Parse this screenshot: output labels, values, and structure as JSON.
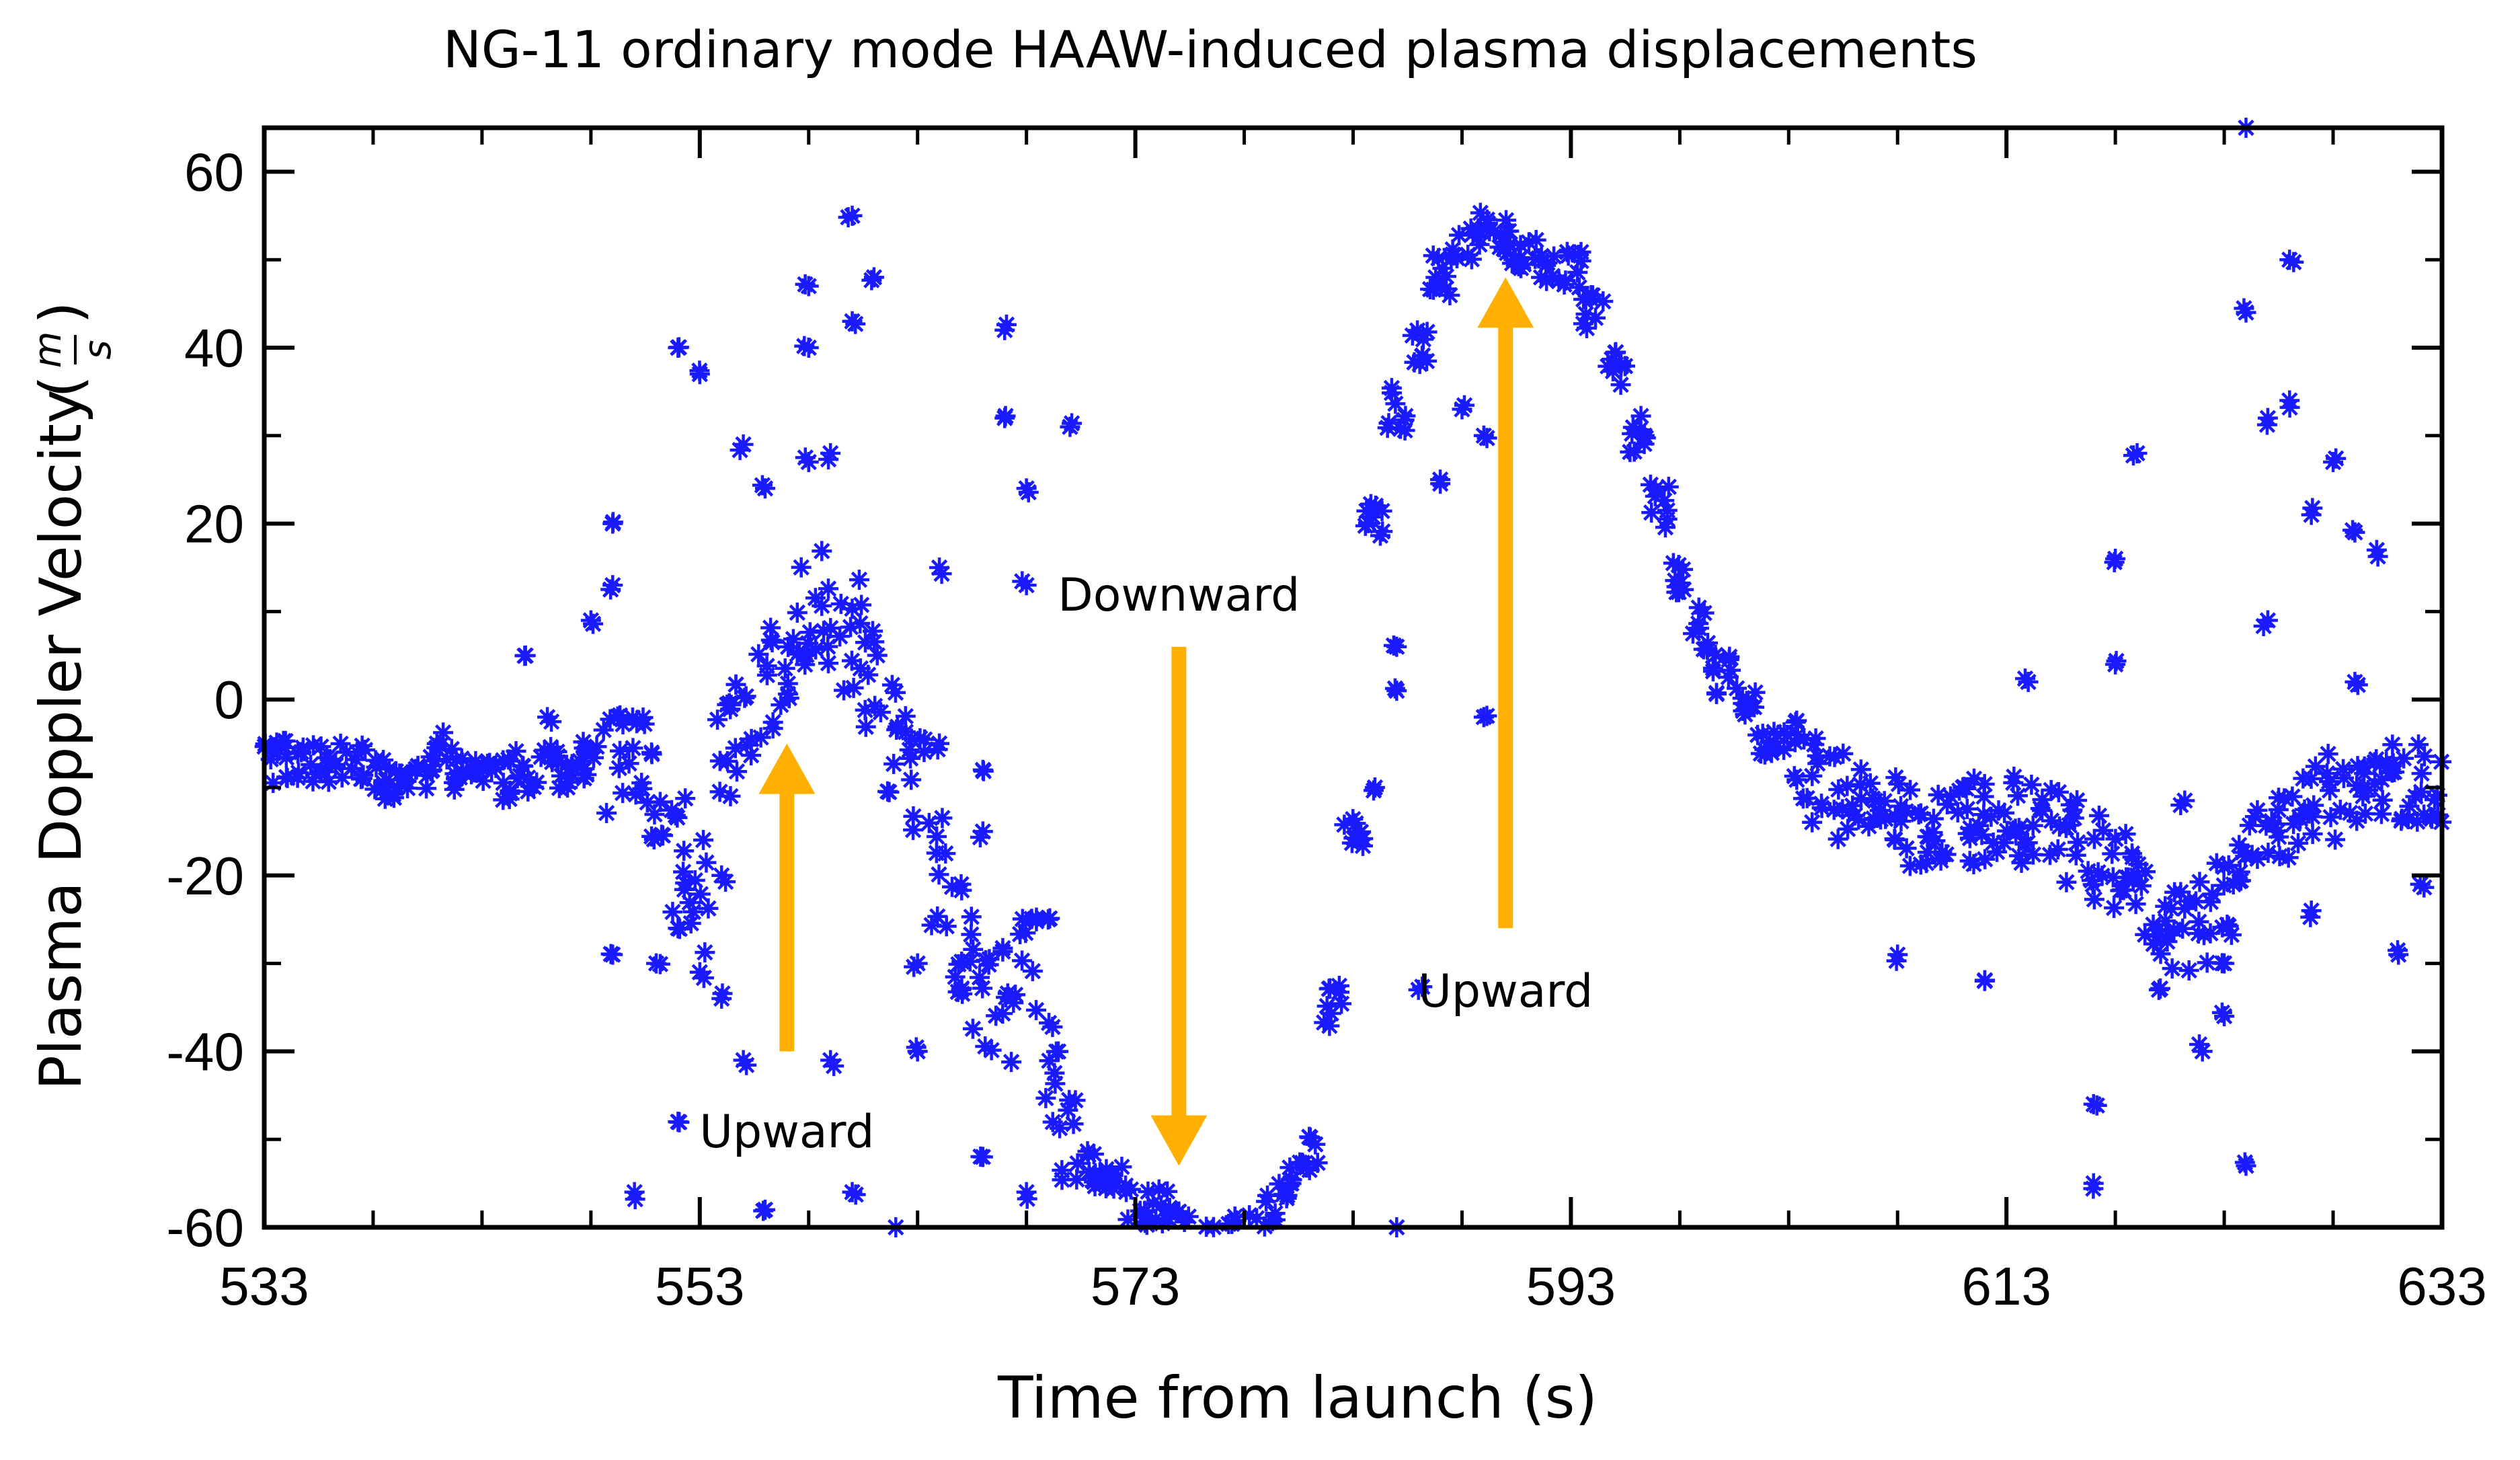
{
  "chart_data": {
    "type": "scatter",
    "title": "NG-11 ordinary mode HAAW-induced plasma displacements",
    "xlabel": "Time from launch (s)",
    "ylabel": "Plasma Doppler Velocity",
    "ylabel_unit": {
      "numerator": "m",
      "denominator": "s"
    },
    "xlim": [
      533,
      633
    ],
    "ylim": [
      -60,
      65
    ],
    "xticks": [
      533,
      553,
      573,
      593,
      613,
      633
    ],
    "xtick_labels": [
      "533",
      "553",
      "573",
      "593",
      "613",
      "633"
    ],
    "yticks": [
      -60,
      -40,
      -20,
      0,
      20,
      40,
      60
    ],
    "ytick_labels": [
      "-60",
      "-40",
      "-20",
      "0",
      "20",
      "40",
      "60"
    ],
    "marker": "asterisk",
    "marker_color": "#1a1aff",
    "series": [
      {
        "name": "Plasma Doppler velocity",
        "x": [
          533,
          534,
          535,
          536,
          537,
          538,
          539,
          540,
          541,
          542,
          543,
          544,
          545,
          546,
          547,
          548,
          549,
          550,
          551,
          552,
          553,
          554,
          555,
          556,
          557,
          558,
          559,
          560,
          561,
          562,
          563,
          564,
          565,
          566,
          567,
          568,
          569,
          570,
          571,
          572,
          573,
          574,
          575,
          576,
          577,
          578,
          579,
          580,
          581,
          582,
          583,
          584,
          585,
          586,
          587,
          588,
          589,
          590,
          591,
          592,
          593,
          594,
          595,
          596,
          597,
          598,
          599,
          600,
          601,
          602,
          603,
          604,
          605,
          606,
          607,
          608,
          609,
          610,
          611,
          612,
          613,
          614,
          615,
          616,
          617,
          618,
          619,
          620,
          621,
          622,
          623,
          624,
          625,
          626,
          627,
          628,
          629,
          630,
          631,
          632,
          633
        ],
        "y": [
          -7,
          -7,
          -7,
          -7,
          -7,
          -8,
          -9,
          -8,
          -6,
          -8,
          -9,
          -9,
          -8,
          -7,
          -8,
          -7,
          -6,
          -9,
          -13,
          -18,
          -22,
          -5,
          -2,
          2,
          6,
          9,
          10,
          7,
          2,
          -5,
          -10,
          -20,
          -27,
          -33,
          -35,
          -30,
          -42,
          -52,
          -53,
          -55,
          -57,
          -58,
          -60,
          -61,
          -62,
          -61,
          -58,
          -55,
          -52,
          -35,
          -15,
          20,
          33,
          40,
          48,
          52,
          53,
          52,
          51,
          50,
          49,
          44,
          38,
          30,
          22,
          14,
          8,
          3,
          -1,
          -4,
          -7,
          -9,
          -11,
          -12,
          -13,
          -13,
          -14,
          -14,
          -14,
          -14,
          -13,
          -14,
          -15,
          -16,
          -18,
          -20,
          -22,
          -24,
          -26,
          -25,
          -23,
          -18,
          -15,
          -13,
          -12,
          -11,
          -10,
          -10,
          -10,
          -9,
          -9
        ],
        "scatter_outliers": [
          [
            554,
            -20
          ],
          [
            549,
            20
          ],
          [
            549,
            13
          ],
          [
            549,
            -29
          ],
          [
            552,
            40
          ],
          [
            553,
            37
          ],
          [
            555,
            29
          ],
          [
            556,
            24
          ],
          [
            558,
            27
          ],
          [
            558,
            40
          ],
          [
            558,
            47
          ],
          [
            559,
            28
          ],
          [
            560,
            55
          ],
          [
            560,
            43
          ],
          [
            561,
            48
          ],
          [
            564,
            15
          ],
          [
            564,
            -5
          ],
          [
            566,
            -8
          ],
          [
            566,
            -15
          ],
          [
            567,
            42
          ],
          [
            567,
            32
          ],
          [
            568,
            24
          ],
          [
            568,
            13
          ],
          [
            570,
            31
          ],
          [
            553,
            -31
          ],
          [
            554,
            -34
          ],
          [
            555,
            -41
          ],
          [
            552,
            -48
          ],
          [
            550,
            -56
          ],
          [
            556,
            -58
          ],
          [
            559,
            -41
          ],
          [
            560,
            -56
          ],
          [
            562,
            -60
          ],
          [
            563,
            -30
          ],
          [
            563,
            -40
          ],
          [
            565,
            -21
          ],
          [
            565,
            -33
          ],
          [
            566,
            -52
          ],
          [
            568,
            -56
          ],
          [
            569,
            -25
          ],
          [
            545,
            5
          ],
          [
            546,
            -2
          ],
          [
            548,
            9
          ],
          [
            551,
            -30
          ],
          [
            552,
            -26
          ],
          [
            584,
            -10
          ],
          [
            585,
            6
          ],
          [
            585,
            1
          ],
          [
            585,
            -60
          ],
          [
            586,
            -33
          ],
          [
            587,
            47
          ],
          [
            587,
            25
          ],
          [
            589,
            -2
          ],
          [
            588,
            33
          ],
          [
            589,
            30
          ],
          [
            590,
            52
          ],
          [
            614,
            2
          ],
          [
            617,
            -46
          ],
          [
            617,
            -55
          ],
          [
            618,
            4
          ],
          [
            618,
            16
          ],
          [
            619,
            28
          ],
          [
            621,
            -12
          ],
          [
            622,
            -40
          ],
          [
            623,
            -36
          ],
          [
            623,
            -30
          ],
          [
            624,
            -53
          ],
          [
            624,
            65
          ],
          [
            624,
            44
          ],
          [
            625,
            9
          ],
          [
            625,
            32
          ],
          [
            626,
            50
          ],
          [
            626,
            34
          ],
          [
            627,
            -24
          ],
          [
            627,
            21
          ],
          [
            628,
            27
          ],
          [
            629,
            19
          ],
          [
            629,
            2
          ],
          [
            630,
            17
          ],
          [
            631,
            -29
          ],
          [
            632,
            -21
          ],
          [
            612,
            -32
          ],
          [
            611,
            -10
          ],
          [
            608,
            -29
          ],
          [
            619,
            -20
          ],
          [
            620,
            -33
          ]
        ]
      }
    ],
    "arrows": [
      {
        "label": "Upward",
        "direction": "up",
        "x": 557,
        "y_from": -40,
        "y_to": -5,
        "label_x": 557,
        "label_y": -49
      },
      {
        "label": "Downward",
        "direction": "down",
        "x": 575,
        "y_from": 6,
        "y_to": -53,
        "label_x": 575,
        "label_y": 12
      },
      {
        "label": "Upward",
        "direction": "up",
        "x": 590,
        "y_from": -26,
        "y_to": 48,
        "label_x": 590,
        "label_y": -33
      }
    ],
    "arrow_color": "#ffb000",
    "grid": false,
    "legend": "none"
  }
}
